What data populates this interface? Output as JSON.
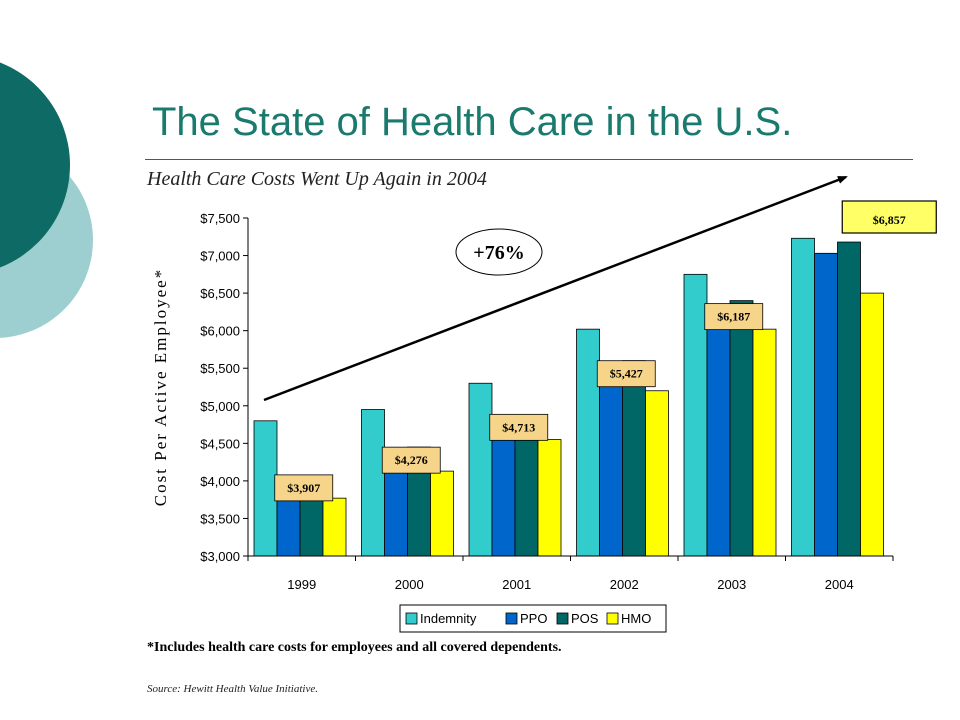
{
  "slide": {
    "title": "The State of Health Care in the U.S.",
    "subtitle": "Health Care Costs Went Up Again in 2004",
    "footnote": "*Includes health care costs for employees and all covered dependents.",
    "source": "Source:  Hewitt Health Value Initiative.",
    "theme_colors": {
      "title": "#1a7a6e",
      "dark_teal": "#0d6a65",
      "light_teal": "#9ecfd0"
    }
  },
  "chart_data": {
    "type": "bar",
    "title": "",
    "xlabel": "",
    "ylabel": "Cost Per Active Employee*",
    "ylim": [
      3000,
      7500
    ],
    "yticks": [
      3000,
      3500,
      4000,
      4500,
      5000,
      5500,
      6000,
      6500,
      7000,
      7500
    ],
    "ytick_labels": [
      "$3,000",
      "$3,500",
      "$4,000",
      "$4,500",
      "$5,000",
      "$5,500",
      "$6,000",
      "$6,500",
      "$7,000",
      "$7,500"
    ],
    "categories": [
      "1999",
      "2000",
      "2001",
      "2002",
      "2003",
      "2004"
    ],
    "series": [
      {
        "name": "Indemnity",
        "color": "#33cccc",
        "values": [
          4800,
          4950,
          5300,
          6020,
          6750,
          7230
        ]
      },
      {
        "name": "PPO",
        "color": "#0066cc",
        "values": [
          4000,
          4150,
          4730,
          5500,
          6300,
          7030
        ]
      },
      {
        "name": "POS",
        "color": "#006666",
        "values": [
          4060,
          4450,
          4840,
          5600,
          6400,
          7180
        ]
      },
      {
        "name": "HMO",
        "color": "#ffff00",
        "values": [
          3770,
          4130,
          4550,
          5200,
          6020,
          6500
        ]
      }
    ],
    "grid": false,
    "legend": "bottom",
    "annotations": {
      "averages": [
        {
          "label": "$3,907",
          "value": 3907,
          "category": "1999"
        },
        {
          "label": "$4,276",
          "value": 4276,
          "category": "2000"
        },
        {
          "label": "$4,713",
          "value": 4713,
          "category": "2001"
        },
        {
          "label": "$5,427",
          "value": 5427,
          "category": "2002"
        },
        {
          "label": "$6,187",
          "value": 6187,
          "category": "2003"
        },
        {
          "label": "$6,857",
          "value": 6857,
          "category": "2004"
        }
      ],
      "growth_label": "+76%"
    }
  }
}
